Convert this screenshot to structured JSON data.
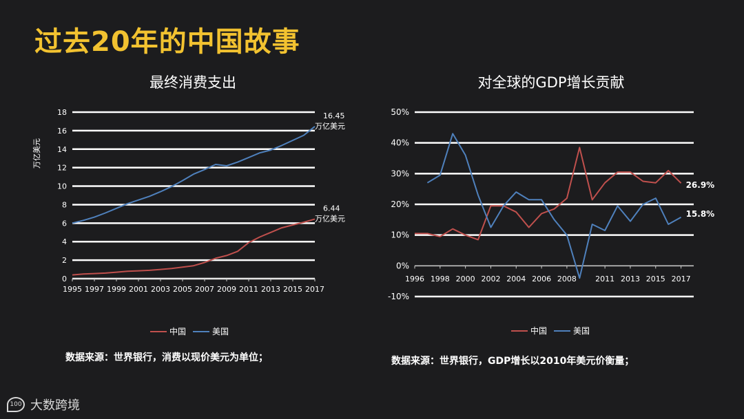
{
  "page": {
    "title": "过去20年的中国故事"
  },
  "source_left": "数据来源：世界银行，消费以现价美元为单位；",
  "source_right": "数据来源：世界银行，GDP增长以2010年美元价衡量；",
  "brand": {
    "name": "大数跨境",
    "logo_text": "100"
  },
  "colors": {
    "china": "#c0504d",
    "usa": "#4f81bd",
    "grid": "#ffffff",
    "title": "#f2c230"
  },
  "chart_data": [
    {
      "type": "line",
      "title": "最终消费支出",
      "ylabel": "万亿美元",
      "xlabel": "",
      "ylim": [
        0,
        18
      ],
      "yticks": [
        0,
        2,
        4,
        6,
        8,
        10,
        12,
        14,
        16,
        18
      ],
      "x": [
        1995,
        1996,
        1997,
        1998,
        1999,
        2000,
        2001,
        2002,
        2003,
        2004,
        2005,
        2006,
        2007,
        2008,
        2009,
        2010,
        2011,
        2012,
        2013,
        2014,
        2015,
        2016,
        2017
      ],
      "xtick_labels": [
        "1995",
        "1997",
        "1999",
        "2001",
        "2003",
        "2005",
        "2007",
        "2009",
        "2011",
        "2013",
        "2015",
        "2017"
      ],
      "legend": "bottom",
      "series": [
        {
          "name": "中国",
          "color": "#c0504d",
          "values": [
            0.4,
            0.5,
            0.55,
            0.6,
            0.7,
            0.8,
            0.85,
            0.9,
            1.0,
            1.1,
            1.25,
            1.4,
            1.75,
            2.2,
            2.5,
            2.95,
            3.9,
            4.5,
            5.0,
            5.5,
            5.8,
            6.1,
            6.44
          ]
        },
        {
          "name": "美国",
          "color": "#4f81bd",
          "values": [
            6.0,
            6.3,
            6.65,
            7.1,
            7.6,
            8.1,
            8.5,
            8.9,
            9.4,
            9.95,
            10.6,
            11.3,
            11.8,
            12.35,
            12.2,
            12.6,
            13.1,
            13.6,
            13.9,
            14.4,
            14.95,
            15.5,
            16.45
          ]
        }
      ],
      "annotations": [
        {
          "series": "美国",
          "value": "16.45",
          "unit": "万亿美元"
        },
        {
          "series": "中国",
          "value": "6.44",
          "unit": "万亿美元"
        }
      ]
    },
    {
      "type": "line",
      "title": "对全球的GDP增长贡献",
      "xlabel": "",
      "ylabel": "",
      "ylim": [
        -10,
        50
      ],
      "yticks": [
        -10,
        0,
        10,
        20,
        30,
        40,
        50
      ],
      "ytick_labels": [
        "-10%",
        "0%",
        "10%",
        "20%",
        "30%",
        "40%",
        "50%"
      ],
      "x": [
        1996,
        1997,
        1998,
        1999,
        2000,
        2001,
        2002,
        2003,
        2004,
        2005,
        2006,
        2007,
        2008,
        2009,
        2010,
        2011,
        2012,
        2013,
        2014,
        2015,
        2016,
        2017,
        2018
      ],
      "xtick_labels": [
        "1996",
        "1998",
        "2000",
        "2002",
        "2004",
        "2006",
        "2008",
        "2011",
        "2013",
        "2015",
        "2017"
      ],
      "legend": "bottom",
      "series": [
        {
          "name": "中国",
          "color": "#c0504d",
          "values": [
            10.5,
            10.5,
            9.5,
            12.0,
            10.0,
            8.5,
            19.5,
            19.5,
            17.5,
            12.5,
            17.0,
            18.5,
            22.0,
            38.5,
            21.5,
            27.0,
            30.5,
            30.5,
            27.5,
            27.0,
            31.0,
            26.9,
            null
          ]
        },
        {
          "name": "美国",
          "color": "#4f81bd",
          "values": [
            null,
            27.0,
            29.5,
            43.0,
            36.0,
            23.0,
            12.5,
            19.5,
            24.0,
            21.5,
            21.5,
            15.0,
            10.0,
            -4.0,
            13.5,
            11.5,
            19.5,
            14.5,
            20.0,
            22.0,
            13.5,
            15.8,
            null
          ]
        }
      ],
      "annotations": [
        {
          "series": "中国",
          "value": "26.9%"
        },
        {
          "series": "美国",
          "value": "15.8%"
        }
      ]
    }
  ]
}
